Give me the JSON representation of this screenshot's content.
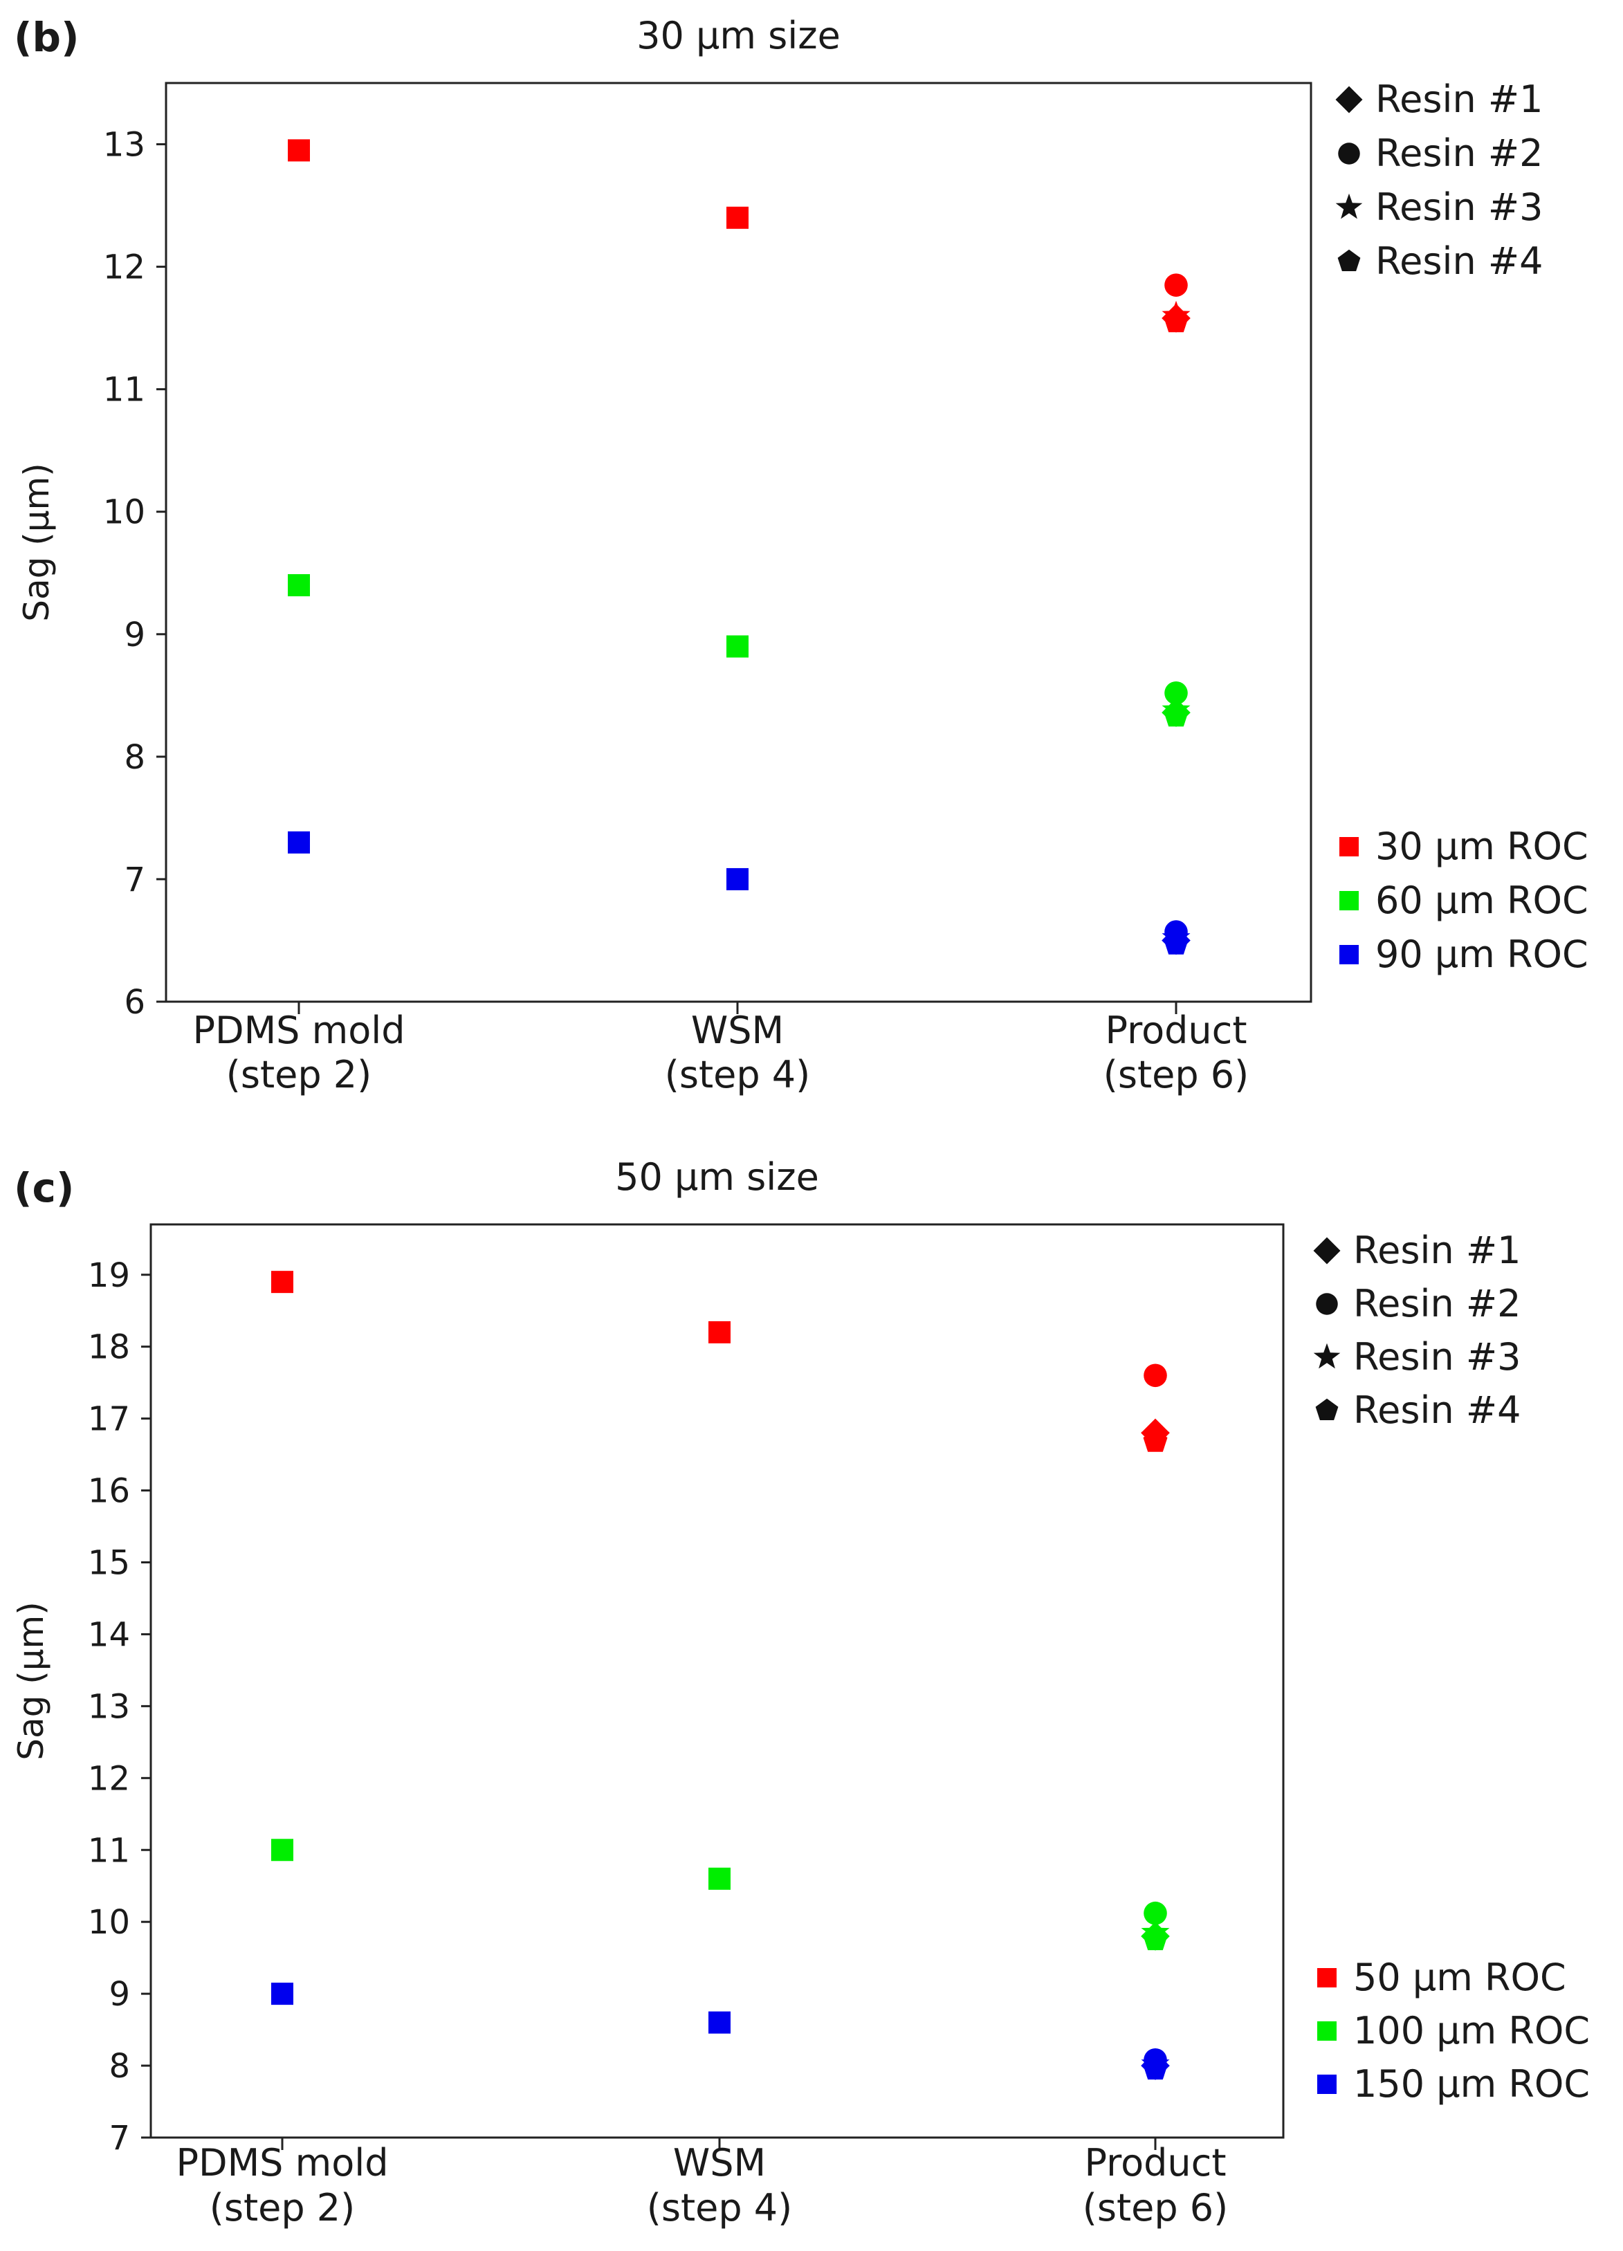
{
  "chart_data": [
    {
      "panel_label": "(b)",
      "type": "scatter",
      "title": "30 μm size",
      "xlabel": "",
      "ylabel": "Sag (μm)",
      "ylim": [
        6,
        13.5
      ],
      "yticks": [
        6,
        7,
        8,
        9,
        10,
        11,
        12,
        13
      ],
      "categories": [
        {
          "line1": "PDMS mold",
          "line2": "(step 2)"
        },
        {
          "line1": "WSM",
          "line2": "(step 4)"
        },
        {
          "line1": "Product",
          "line2": "(step 6)"
        }
      ],
      "marker_legend": [
        {
          "label": "Resin #1",
          "marker": "diamond"
        },
        {
          "label": "Resin #2",
          "marker": "circle"
        },
        {
          "label": "Resin #3",
          "marker": "star"
        },
        {
          "label": "Resin #4",
          "marker": "pentagon"
        }
      ],
      "color_legend": [
        {
          "label": "30 μm ROC",
          "color": "#ff0000"
        },
        {
          "label": "60 μm ROC",
          "color": "#00ee00"
        },
        {
          "label": "90 μm ROC",
          "color": "#0000ee"
        }
      ],
      "series": [
        {
          "name": "30 μm ROC",
          "color": "#ff0000",
          "points": [
            {
              "x": 0,
              "y": 12.95,
              "marker": "square"
            },
            {
              "x": 1,
              "y": 12.4,
              "marker": "square"
            },
            {
              "x": 2,
              "y": 11.85,
              "marker": "circle"
            },
            {
              "x": 2,
              "y": 11.58,
              "marker": "diamond"
            },
            {
              "x": 2,
              "y": 11.6,
              "marker": "star"
            },
            {
              "x": 2,
              "y": 11.55,
              "marker": "pentagon"
            }
          ]
        },
        {
          "name": "60 μm ROC",
          "color": "#00ee00",
          "points": [
            {
              "x": 0,
              "y": 9.4,
              "marker": "square"
            },
            {
              "x": 1,
              "y": 8.9,
              "marker": "square"
            },
            {
              "x": 2,
              "y": 8.52,
              "marker": "circle"
            },
            {
              "x": 2,
              "y": 8.36,
              "marker": "diamond"
            },
            {
              "x": 2,
              "y": 8.38,
              "marker": "star"
            },
            {
              "x": 2,
              "y": 8.33,
              "marker": "pentagon"
            }
          ]
        },
        {
          "name": "90 μm ROC",
          "color": "#0000ee",
          "points": [
            {
              "x": 0,
              "y": 7.3,
              "marker": "square"
            },
            {
              "x": 1,
              "y": 7.0,
              "marker": "square"
            },
            {
              "x": 2,
              "y": 6.57,
              "marker": "circle"
            },
            {
              "x": 2,
              "y": 6.5,
              "marker": "diamond"
            },
            {
              "x": 2,
              "y": 6.52,
              "marker": "star"
            },
            {
              "x": 2,
              "y": 6.47,
              "marker": "pentagon"
            }
          ]
        }
      ]
    },
    {
      "panel_label": "(c)",
      "type": "scatter",
      "title": "50 μm size",
      "xlabel": "",
      "ylabel": "Sag (μm)",
      "ylim": [
        7,
        19.7
      ],
      "yticks": [
        7,
        8,
        9,
        10,
        11,
        12,
        13,
        14,
        15,
        16,
        17,
        18,
        19
      ],
      "categories": [
        {
          "line1": "PDMS mold",
          "line2": "(step 2)"
        },
        {
          "line1": "WSM",
          "line2": "(step 4)"
        },
        {
          "line1": "Product",
          "line2": "(step 6)"
        }
      ],
      "marker_legend": [
        {
          "label": "Resin #1",
          "marker": "diamond"
        },
        {
          "label": "Resin #2",
          "marker": "circle"
        },
        {
          "label": "Resin #3",
          "marker": "star"
        },
        {
          "label": "Resin #4",
          "marker": "pentagon"
        }
      ],
      "color_legend": [
        {
          "label": "50 μm ROC",
          "color": "#ff0000"
        },
        {
          "label": "100 μm ROC",
          "color": "#00ee00"
        },
        {
          "label": "150 μm ROC",
          "color": "#0000ee"
        }
      ],
      "series": [
        {
          "name": "50 μm ROC",
          "color": "#ff0000",
          "points": [
            {
              "x": 0,
              "y": 18.9,
              "marker": "square"
            },
            {
              "x": 1,
              "y": 18.2,
              "marker": "square"
            },
            {
              "x": 2,
              "y": 17.6,
              "marker": "circle"
            },
            {
              "x": 2,
              "y": 16.8,
              "marker": "diamond"
            },
            {
              "x": 2,
              "y": 16.75,
              "marker": "star"
            },
            {
              "x": 2,
              "y": 16.68,
              "marker": "pentagon"
            }
          ]
        },
        {
          "name": "100 μm ROC",
          "color": "#00ee00",
          "points": [
            {
              "x": 0,
              "y": 11.0,
              "marker": "square"
            },
            {
              "x": 1,
              "y": 10.6,
              "marker": "square"
            },
            {
              "x": 2,
              "y": 10.12,
              "marker": "circle"
            },
            {
              "x": 2,
              "y": 9.8,
              "marker": "diamond"
            },
            {
              "x": 2,
              "y": 9.85,
              "marker": "star"
            },
            {
              "x": 2,
              "y": 9.75,
              "marker": "pentagon"
            }
          ]
        },
        {
          "name": "150 μm ROC",
          "color": "#0000ee",
          "points": [
            {
              "x": 0,
              "y": 9.0,
              "marker": "square"
            },
            {
              "x": 1,
              "y": 8.6,
              "marker": "square"
            },
            {
              "x": 2,
              "y": 8.08,
              "marker": "circle"
            },
            {
              "x": 2,
              "y": 8.0,
              "marker": "diamond"
            },
            {
              "x": 2,
              "y": 8.02,
              "marker": "star"
            },
            {
              "x": 2,
              "y": 7.95,
              "marker": "pentagon"
            }
          ]
        }
      ]
    }
  ]
}
